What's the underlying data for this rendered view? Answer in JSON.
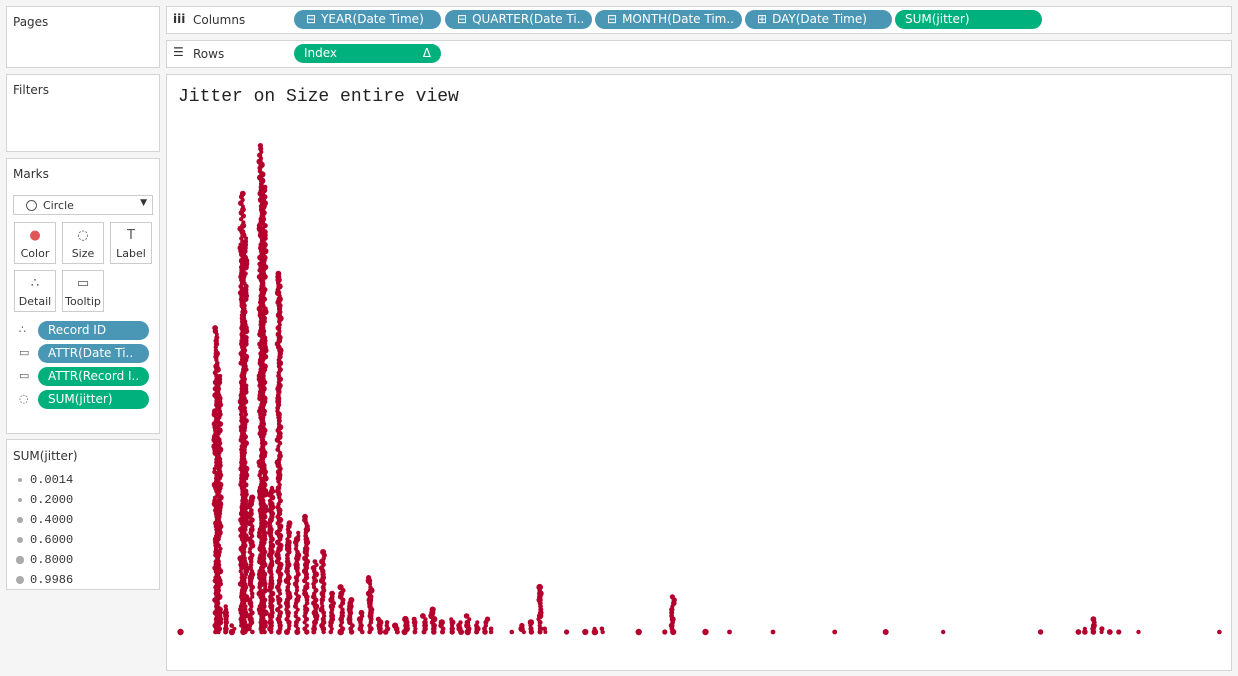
{
  "shelves": {
    "columns_label": "Columns",
    "columns": [
      "YEAR(Date Time)",
      "QUARTER(Date Ti..",
      "MONTH(Date Tim..",
      "DAY(Date Time)",
      "SUM(jitter)"
    ],
    "rows_label": "Rows",
    "rows": [
      "Index"
    ],
    "rows_delta": "Δ"
  },
  "panels": {
    "pages": "Pages",
    "filters": "Filters",
    "marks": "Marks"
  },
  "marks": {
    "type": "Circle",
    "buttons": [
      "Color",
      "Size",
      "Label",
      "Detail",
      "Tooltip"
    ],
    "pills": [
      "Record ID",
      "ATTR(Date Ti..",
      "ATTR(Record I..",
      "SUM(jitter)"
    ]
  },
  "legend": {
    "title": "SUM(jitter)",
    "items": [
      "0.0014",
      "0.2000",
      "0.4000",
      "0.6000",
      "0.8000",
      "0.9986"
    ]
  },
  "view": {
    "title": "Jitter on Size entire view"
  }
}
